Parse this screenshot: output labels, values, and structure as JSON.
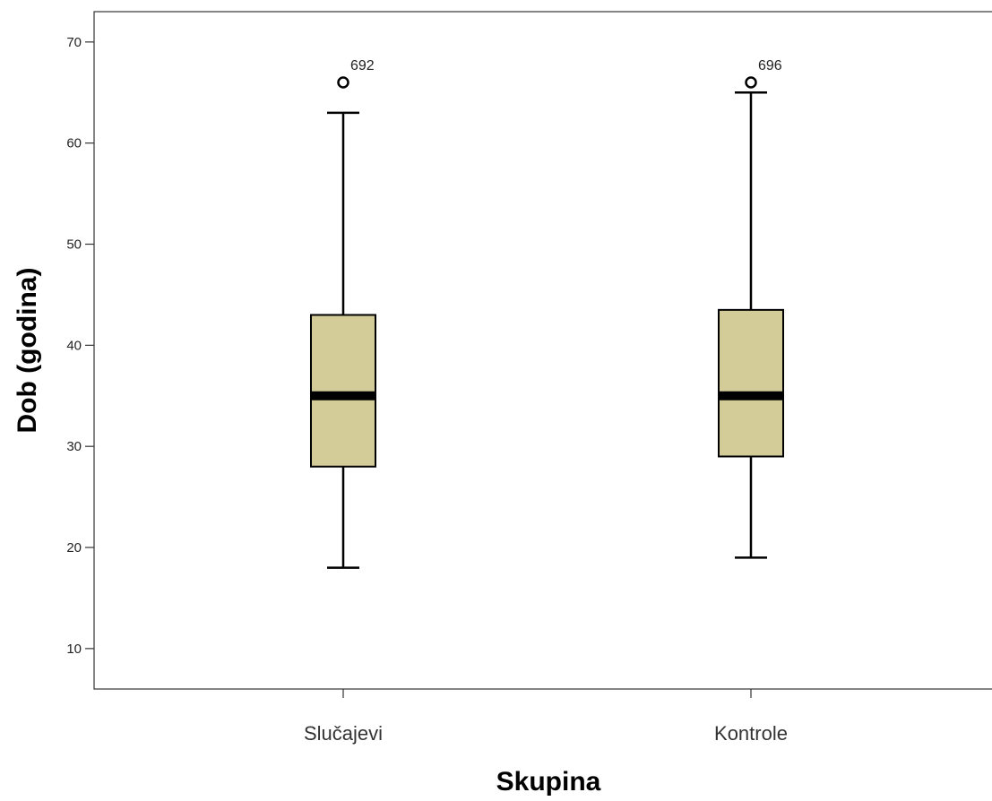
{
  "chart_data": {
    "type": "boxplot",
    "title": "",
    "xlabel": "Skupina",
    "ylabel": "Dob (godina)",
    "ylim": [
      6,
      73
    ],
    "yticks": [
      10,
      20,
      30,
      40,
      50,
      60,
      70
    ],
    "grid": false,
    "legend": "none",
    "box_color": "#d3cc98",
    "categories": [
      "Slučajevi",
      "Kontrole"
    ],
    "boxes": [
      {
        "category": "Slučajevi",
        "whisker_low": 18,
        "q1": 28,
        "median": 35,
        "q3": 43,
        "whisker_high": 63,
        "outliers": [
          {
            "value": 66,
            "label": "692"
          }
        ]
      },
      {
        "category": "Kontrole",
        "whisker_low": 19,
        "q1": 29,
        "median": 35,
        "q3": 43.5,
        "whisker_high": 65,
        "outliers": [
          {
            "value": 66,
            "label": "696"
          }
        ]
      }
    ]
  }
}
